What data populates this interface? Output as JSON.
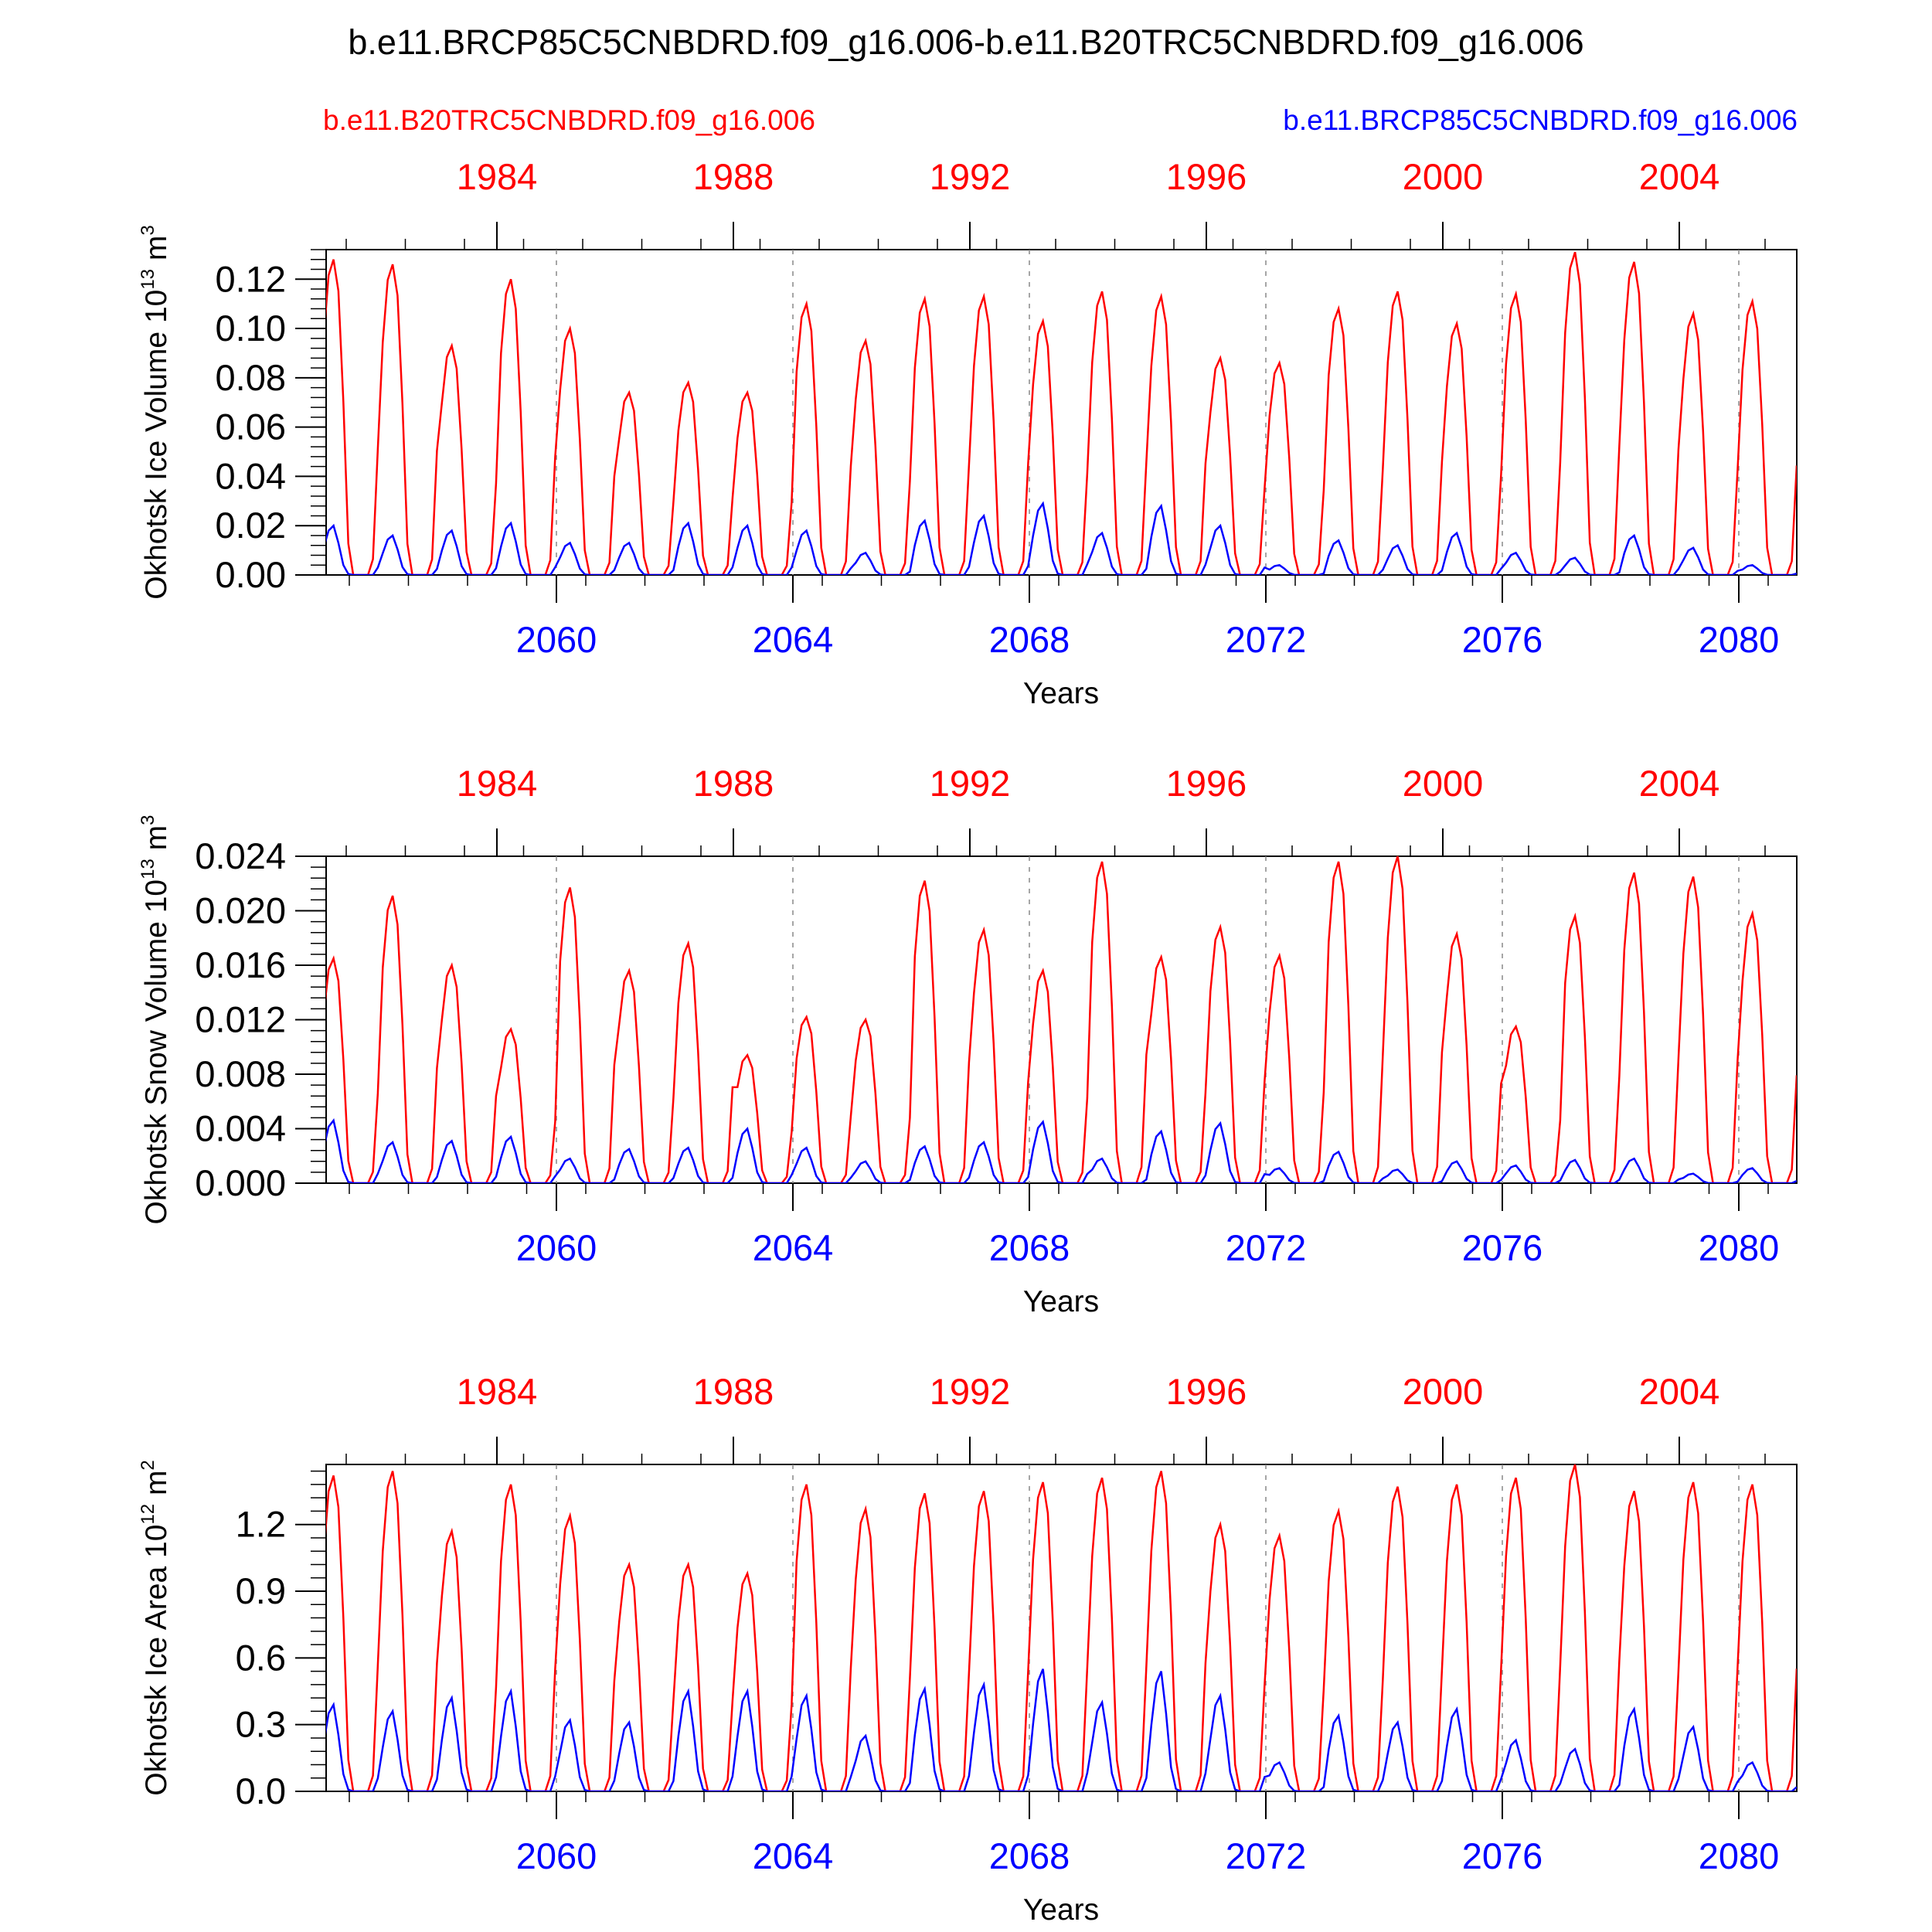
{
  "page": {
    "title": "b.e11.BRCP85C5CNBDRD.f09_g16.006-b.e11.B20TRC5CNBDRD.f09_g16.006"
  },
  "legend": {
    "left_label": "b.e11.B20TRC5CNBDRD.f09_g16.006",
    "left_color": "#ff0000",
    "right_label": "b.e11.BRCP85C5CNBDRD.f09_g16.006",
    "right_color": "#0000ff"
  },
  "chart_data": [
    {
      "type": "line",
      "ylabel": "Okhotsk Ice Volume 10",
      "ylabel_exponent": "13",
      "ylabel_unit": " m",
      "ylabel_unit_exponent": "3",
      "xlabel": "Years",
      "ylim": [
        0.0,
        0.132
      ],
      "yticks": [
        "0.00",
        "0.02",
        "0.04",
        "0.06",
        "0.08",
        "0.10",
        "0.12"
      ],
      "top_axis_years": [
        "1984",
        "1988",
        "1992",
        "1996",
        "2000",
        "2004"
      ],
      "bottom_axis_years": [
        "2060",
        "2064",
        "2068",
        "2072",
        "2076",
        "2080"
      ],
      "vertical_grid": "dashed at every 4th year",
      "series": [
        {
          "name": "b.e11.B20TRC5CNBDRD.f09_g16.006",
          "color": "#ff0000",
          "annual_peaks": [
            0.128,
            0.126,
            0.093,
            0.12,
            0.1,
            0.074,
            0.078,
            0.074,
            0.11,
            0.095,
            0.112,
            0.113,
            0.103,
            0.115,
            0.113,
            0.088,
            0.086,
            0.108,
            0.115,
            0.102,
            0.114,
            0.131,
            0.127,
            0.106,
            0.111
          ]
        },
        {
          "name": "b.e11.BRCP85C5CNBDRD.f09_g16.006",
          "color": "#0000ff",
          "annual_peaks": [
            0.02,
            0.016,
            0.018,
            0.021,
            0.013,
            0.013,
            0.021,
            0.02,
            0.018,
            0.009,
            0.022,
            0.024,
            0.029,
            0.017,
            0.028,
            0.02,
            0.004,
            0.014,
            0.012,
            0.017,
            0.009,
            0.007,
            0.016,
            0.011,
            0.004
          ]
        }
      ]
    },
    {
      "type": "line",
      "ylabel": "Okhotsk Snow Volume 10",
      "ylabel_exponent": "13",
      "ylabel_unit": " m",
      "ylabel_unit_exponent": "3",
      "xlabel": "Years",
      "ylim": [
        0.0,
        0.024
      ],
      "yticks": [
        "0.000",
        "0.004",
        "0.008",
        "0.012",
        "0.016",
        "0.020",
        "0.024"
      ],
      "top_axis_years": [
        "1984",
        "1988",
        "1992",
        "1996",
        "2000",
        "2004"
      ],
      "bottom_axis_years": [
        "2060",
        "2064",
        "2068",
        "2072",
        "2076",
        "2080"
      ],
      "vertical_grid": "dashed at every 4th year",
      "series": [
        {
          "name": "b.e11.B20TRC5CNBDRD.f09_g16.006",
          "color": "#ff0000",
          "annual_peaks": [
            0.0165,
            0.0211,
            0.016,
            0.0113,
            0.0217,
            0.0156,
            0.0176,
            0.0094,
            0.0122,
            0.012,
            0.0222,
            0.0186,
            0.0156,
            0.0236,
            0.0166,
            0.0188,
            0.0167,
            0.0236,
            0.024,
            0.0183,
            0.0115,
            0.0196,
            0.0228,
            0.0225,
            0.0198
          ]
        },
        {
          "name": "b.e11.BRCP85C5CNBDRD.f09_g16.006",
          "color": "#0000ff",
          "annual_peaks": [
            0.0046,
            0.003,
            0.0031,
            0.0034,
            0.0018,
            0.0025,
            0.0026,
            0.004,
            0.0026,
            0.0016,
            0.0027,
            0.003,
            0.0045,
            0.0018,
            0.0038,
            0.0044,
            0.0011,
            0.0023,
            0.001,
            0.0016,
            0.0013,
            0.0017,
            0.0018,
            0.0007,
            0.0011
          ]
        }
      ]
    },
    {
      "type": "line",
      "ylabel": "Okhotsk Ice Area 10",
      "ylabel_exponent": "12",
      "ylabel_unit": " m",
      "ylabel_unit_exponent": "2",
      "xlabel": "Years",
      "ylim": [
        0.0,
        1.47
      ],
      "yticks": [
        "0.0",
        "0.3",
        "0.6",
        "0.9",
        "1.2"
      ],
      "top_axis_years": [
        "1984",
        "1988",
        "1992",
        "1996",
        "2000",
        "2004"
      ],
      "bottom_axis_years": [
        "2060",
        "2064",
        "2068",
        "2072",
        "2076",
        "2080"
      ],
      "vertical_grid": "dashed at every 4th year",
      "series": [
        {
          "name": "b.e11.B20TRC5CNBDRD.f09_g16.006",
          "color": "#ff0000",
          "annual_peaks": [
            1.42,
            1.44,
            1.17,
            1.38,
            1.24,
            1.02,
            1.02,
            0.98,
            1.38,
            1.27,
            1.34,
            1.35,
            1.39,
            1.41,
            1.44,
            1.2,
            1.15,
            1.26,
            1.37,
            1.38,
            1.41,
            1.47,
            1.35,
            1.39,
            1.38
          ]
        },
        {
          "name": "b.e11.BRCP85C5CNBDRD.f09_g16.006",
          "color": "#0000ff",
          "annual_peaks": [
            0.39,
            0.36,
            0.42,
            0.45,
            0.32,
            0.31,
            0.45,
            0.45,
            0.43,
            0.25,
            0.46,
            0.48,
            0.55,
            0.4,
            0.54,
            0.43,
            0.13,
            0.34,
            0.31,
            0.37,
            0.23,
            0.19,
            0.37,
            0.29,
            0.13
          ]
        }
      ]
    }
  ]
}
